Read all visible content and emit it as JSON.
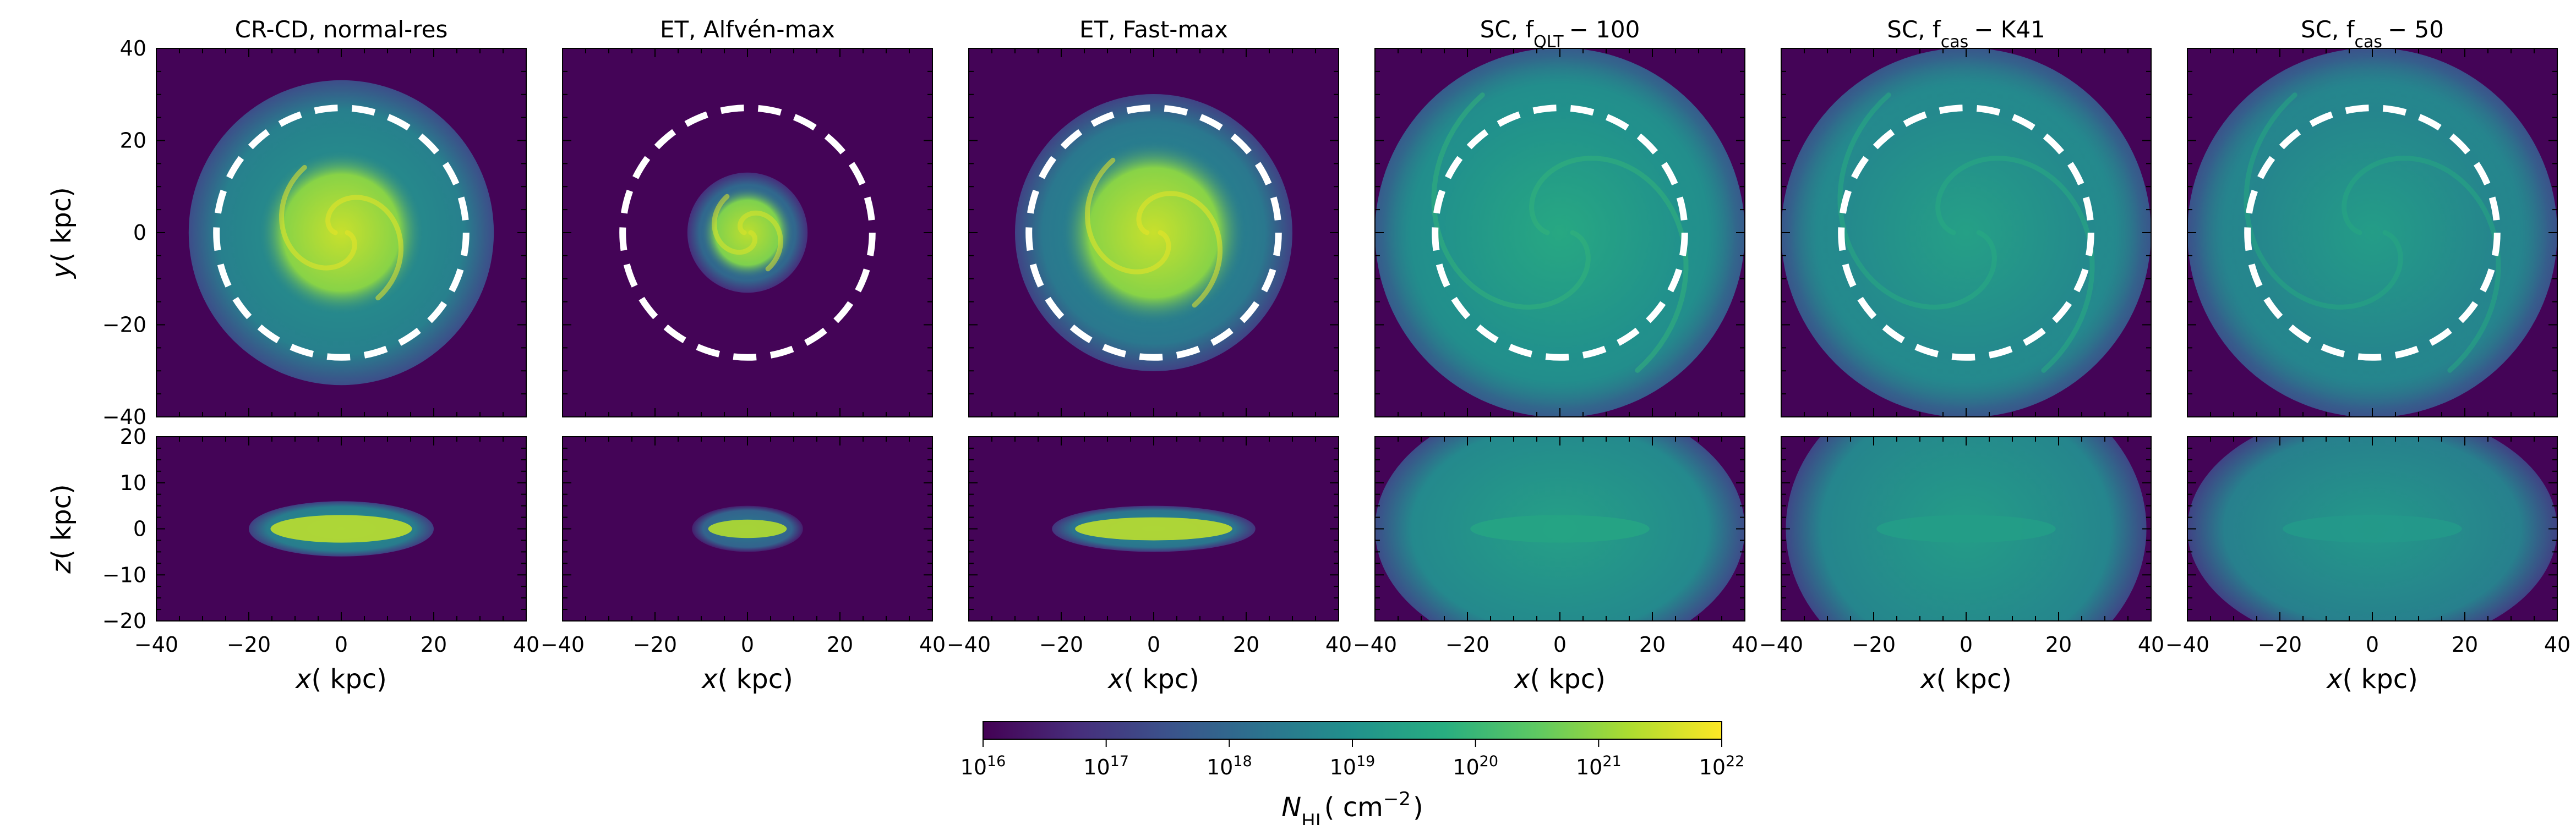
{
  "chart_data": {
    "type": "heatmap",
    "colormap": "viridis",
    "quantity_label": "N_HI( cm^-2)",
    "colorbar": {
      "scale": "log",
      "range": [
        1e+16,
        1e+22
      ],
      "ticks": [
        {
          "base": "10",
          "exp": "16"
        },
        {
          "base": "10",
          "exp": "17"
        },
        {
          "base": "10",
          "exp": "18"
        },
        {
          "base": "10",
          "exp": "19"
        },
        {
          "base": "10",
          "exp": "20"
        },
        {
          "base": "10",
          "exp": "21"
        },
        {
          "base": "10",
          "exp": "22"
        }
      ],
      "label": {
        "sym": "N",
        "sub": "HI",
        "unit_pre": "( cm",
        "unit_exp": "−2",
        "unit_post": ")"
      }
    },
    "axes": {
      "x": {
        "label_sym": "x",
        "label_unit": "( kpc)",
        "range": [
          -40,
          40
        ],
        "ticks": [
          -40,
          -20,
          0,
          20,
          40
        ]
      },
      "y": {
        "label_sym": "y",
        "label_unit": "( kpc)",
        "range": [
          -40,
          40
        ],
        "ticks": [
          -40,
          -20,
          0,
          20,
          40
        ]
      },
      "z": {
        "label_sym": "z",
        "label_unit": "( kpc)",
        "range": [
          -20,
          20
        ],
        "ticks": [
          -20,
          -10,
          0,
          10,
          20
        ]
      }
    },
    "tick_labels": {
      "x": [
        "−40",
        "−20",
        "0",
        "20",
        "40"
      ],
      "y": [
        "−40",
        "−20",
        "0",
        "20",
        "40"
      ],
      "z": [
        "−20",
        "−10",
        "0",
        "10",
        "20"
      ]
    },
    "reference_circle_radius_kpc": 27,
    "panels": [
      {
        "title": {
          "pre": "CR-CD, normal-res"
        },
        "face_on_disk_radius_kpc": 18,
        "disk_max_log": 21.5,
        "edge_halfheight_kpc": 3.0,
        "edge_halflength_kpc": 20,
        "halo_radius_kpc": 33,
        "halo_log": 18.6
      },
      {
        "title": {
          "pre": "ET, Alfvén-max"
        },
        "face_on_disk_radius_kpc": 10,
        "disk_max_log": 21.4,
        "edge_halfheight_kpc": 2.0,
        "edge_halflength_kpc": 12,
        "halo_radius_kpc": 13,
        "halo_log": 18.0
      },
      {
        "title": {
          "pre": "ET, Fast-max"
        },
        "face_on_disk_radius_kpc": 20,
        "disk_max_log": 21.5,
        "edge_halfheight_kpc": 2.5,
        "edge_halflength_kpc": 22,
        "halo_radius_kpc": 30,
        "halo_log": 18.4
      },
      {
        "title": {
          "pre": "SC, f",
          "sub": "QLT",
          "post": "− 100"
        },
        "face_on_disk_radius_kpc": 38,
        "disk_max_log": 19.6,
        "edge_halfheight_kpc": 14,
        "edge_halflength_kpc": 40,
        "halo_radius_kpc": 40,
        "halo_log": 18.9
      },
      {
        "title": {
          "pre": "SC, f",
          "sub": "cas",
          "post": "− K41"
        },
        "face_on_disk_radius_kpc": 38,
        "disk_max_log": 19.4,
        "edge_halfheight_kpc": 17,
        "edge_halflength_kpc": 39,
        "halo_radius_kpc": 40,
        "halo_log": 18.8
      },
      {
        "title": {
          "pre": "SC, f",
          "sub": "cas",
          "post": "− 50"
        },
        "face_on_disk_radius_kpc": 38,
        "disk_max_log": 19.3,
        "edge_halfheight_kpc": 13,
        "edge_halflength_kpc": 40,
        "halo_radius_kpc": 40,
        "halo_log": 18.7
      }
    ]
  }
}
